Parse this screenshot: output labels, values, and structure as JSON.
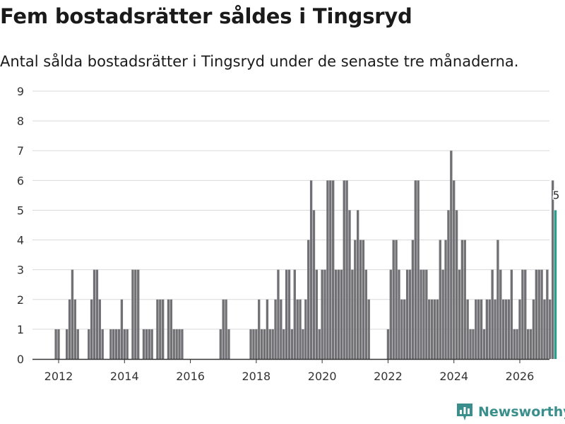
{
  "chart_data": {
    "type": "bar",
    "title": "Fem bostadsrätter såldes i Tingsryd",
    "subtitle": "Antal sålda bostadsrätter i Tingsryd under de senaste tre månaderna.",
    "xlabel": "",
    "ylabel": "",
    "ylim": [
      0,
      9
    ],
    "yticks": [
      "0",
      "1",
      "2",
      "3",
      "4",
      "5",
      "6",
      "7",
      "8",
      "9"
    ],
    "xticks": [
      "2012",
      "2014",
      "2016",
      "2018",
      "2020",
      "2022",
      "2024",
      "2026"
    ],
    "grid": true,
    "start": {
      "year": 2011,
      "month": 12
    },
    "values": [
      1,
      1,
      0,
      0,
      1,
      2,
      3,
      2,
      1,
      0,
      0,
      0,
      1,
      2,
      3,
      3,
      2,
      1,
      0,
      0,
      1,
      1,
      1,
      1,
      2,
      1,
      1,
      0,
      3,
      3,
      3,
      0,
      1,
      1,
      1,
      1,
      0,
      2,
      2,
      2,
      0,
      2,
      2,
      1,
      1,
      1,
      1,
      0,
      0,
      0,
      0,
      0,
      0,
      0,
      0,
      0,
      0,
      0,
      0,
      0,
      1,
      2,
      2,
      1,
      0,
      0,
      0,
      0,
      0,
      0,
      0,
      1,
      1,
      1,
      2,
      1,
      1,
      2,
      1,
      1,
      2,
      3,
      2,
      1,
      3,
      3,
      1,
      3,
      2,
      2,
      1,
      2,
      4,
      6,
      5,
      3,
      1,
      3,
      3,
      6,
      6,
      6,
      3,
      3,
      3,
      6,
      6,
      5,
      3,
      4,
      5,
      4,
      4,
      3,
      2,
      0,
      0,
      0,
      0,
      0,
      0,
      1,
      3,
      4,
      4,
      3,
      2,
      2,
      3,
      3,
      4,
      6,
      6,
      3,
      3,
      3,
      2,
      2,
      2,
      2,
      4,
      3,
      4,
      5,
      7,
      6,
      5,
      3,
      4,
      4,
      2,
      1,
      1,
      2,
      2,
      2,
      1,
      2,
      2,
      3,
      2,
      4,
      3,
      2,
      2,
      2,
      3,
      1,
      1,
      2,
      3,
      3,
      1,
      1,
      2,
      3,
      3,
      3,
      2,
      3,
      2,
      6,
      5
    ],
    "highlight_last": true,
    "last_label": "5",
    "bar_color": "#707075",
    "highlight_color": "#2a9d8f"
  },
  "brand": {
    "name": "Newsworthy",
    "icon": "newsworthy-logo-icon",
    "color": "#3a8f8c"
  }
}
